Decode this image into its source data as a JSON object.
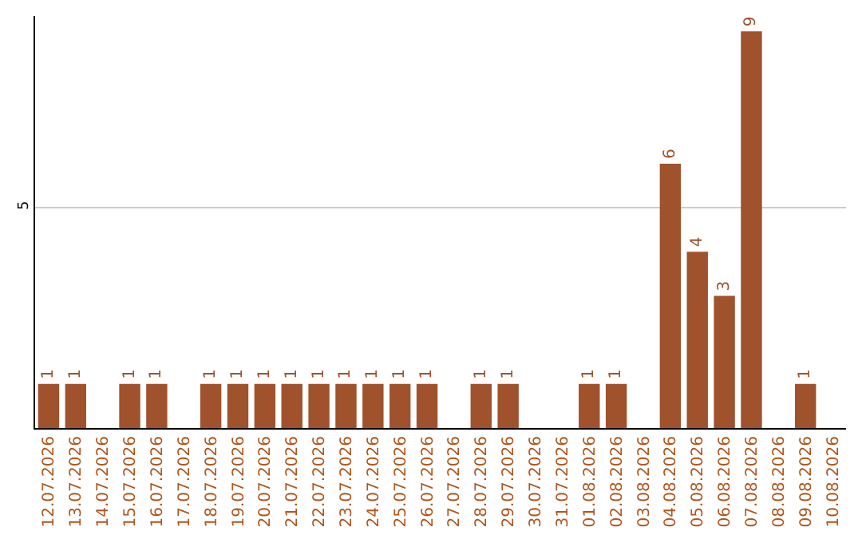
{
  "chart_data": {
    "type": "bar",
    "categories": [
      "12.07.2026",
      "13.07.2026",
      "14.07.2026",
      "15.07.2026",
      "16.07.2026",
      "17.07.2026",
      "18.07.2026",
      "19.07.2026",
      "20.07.2026",
      "21.07.2026",
      "22.07.2026",
      "23.07.2026",
      "24.07.2026",
      "25.07.2026",
      "26.07.2026",
      "27.07.2026",
      "28.07.2026",
      "29.07.2026",
      "30.07.2026",
      "31.07.2026",
      "01.08.2026",
      "02.08.2026",
      "03.08.2026",
      "04.08.2026",
      "05.08.2026",
      "06.08.2026",
      "07.08.2026",
      "08.08.2026",
      "09.08.2026",
      "10.08.2026"
    ],
    "values": [
      1,
      1,
      null,
      1,
      1,
      null,
      1,
      1,
      1,
      1,
      1,
      1,
      1,
      1,
      1,
      null,
      1,
      1,
      null,
      null,
      1,
      1,
      null,
      6,
      4,
      3,
      9,
      null,
      1,
      null
    ],
    "color": "#a0522d",
    "ylim": [
      0,
      9.35
    ],
    "yticks": [
      5
    ],
    "grid": "y",
    "data_labels": true
  }
}
